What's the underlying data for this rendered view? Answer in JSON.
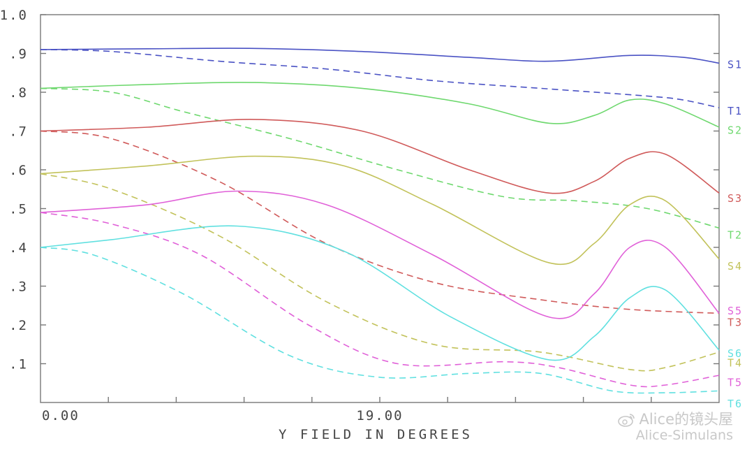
{
  "chart_data": {
    "type": "line",
    "title": "",
    "xlabel": "Y FIELD IN DEGREES",
    "ylabel": "",
    "xlim": [
      0,
      38
    ],
    "ylim": [
      0,
      1.0
    ],
    "x_tick_labels": [
      {
        "value": 0,
        "label": "0.00"
      },
      {
        "value": 19,
        "label": "19.00"
      }
    ],
    "y_tick_labels": [
      {
        "value": 0.1,
        "label": ".1"
      },
      {
        "value": 0.2,
        "label": ".2"
      },
      {
        "value": 0.3,
        "label": ".3"
      },
      {
        "value": 0.4,
        "label": ".4"
      },
      {
        "value": 0.5,
        "label": ".5"
      },
      {
        "value": 0.6,
        "label": ".6"
      },
      {
        "value": 0.7,
        "label": ".7"
      },
      {
        "value": 0.8,
        "label": ".8"
      },
      {
        "value": 0.9,
        "label": ".9"
      },
      {
        "value": 1.0,
        "label": "1.0"
      }
    ],
    "grid": false,
    "legend": "right-edge labels",
    "series": [
      {
        "name": "S1",
        "color": "#4a52c4",
        "style": "solid",
        "points": [
          [
            0,
            0.91
          ],
          [
            6,
            0.912
          ],
          [
            12,
            0.913
          ],
          [
            18,
            0.905
          ],
          [
            24,
            0.89
          ],
          [
            28.5,
            0.88
          ],
          [
            33,
            0.895
          ],
          [
            36,
            0.89
          ],
          [
            38,
            0.875
          ]
        ]
      },
      {
        "name": "T1",
        "color": "#4a52c4",
        "style": "dashed",
        "points": [
          [
            0,
            0.91
          ],
          [
            4,
            0.905
          ],
          [
            10,
            0.88
          ],
          [
            16,
            0.86
          ],
          [
            22,
            0.83
          ],
          [
            28,
            0.81
          ],
          [
            34,
            0.79
          ],
          [
            36,
            0.78
          ],
          [
            38,
            0.76
          ]
        ]
      },
      {
        "name": "S2",
        "color": "#6ed86e",
        "style": "solid",
        "points": [
          [
            0,
            0.81
          ],
          [
            6,
            0.82
          ],
          [
            12,
            0.825
          ],
          [
            18,
            0.81
          ],
          [
            24,
            0.77
          ],
          [
            28.5,
            0.72
          ],
          [
            31,
            0.74
          ],
          [
            33,
            0.78
          ],
          [
            35,
            0.77
          ],
          [
            38,
            0.71
          ]
        ]
      },
      {
        "name": "T2",
        "color": "#6ed86e",
        "style": "dashed",
        "points": [
          [
            0,
            0.81
          ],
          [
            4,
            0.8
          ],
          [
            8,
            0.75
          ],
          [
            14,
            0.68
          ],
          [
            20,
            0.6
          ],
          [
            26,
            0.53
          ],
          [
            30,
            0.52
          ],
          [
            34,
            0.5
          ],
          [
            38,
            0.45
          ]
        ]
      },
      {
        "name": "S3",
        "color": "#d05a5a",
        "style": "solid",
        "points": [
          [
            0,
            0.7
          ],
          [
            6,
            0.71
          ],
          [
            12,
            0.73
          ],
          [
            18,
            0.7
          ],
          [
            24,
            0.6
          ],
          [
            28.5,
            0.54
          ],
          [
            31,
            0.57
          ],
          [
            33,
            0.63
          ],
          [
            35,
            0.64
          ],
          [
            38,
            0.54
          ]
        ]
      },
      {
        "name": "T3",
        "color": "#d05a5a",
        "style": "dashed",
        "points": [
          [
            0,
            0.7
          ],
          [
            4,
            0.68
          ],
          [
            10,
            0.57
          ],
          [
            16,
            0.41
          ],
          [
            22,
            0.31
          ],
          [
            28,
            0.265
          ],
          [
            33,
            0.24
          ],
          [
            38,
            0.23
          ]
        ]
      },
      {
        "name": "S4",
        "color": "#c2c25a",
        "style": "solid",
        "points": [
          [
            0,
            0.59
          ],
          [
            6,
            0.61
          ],
          [
            12,
            0.635
          ],
          [
            17,
            0.61
          ],
          [
            22,
            0.51
          ],
          [
            28.5,
            0.36
          ],
          [
            31,
            0.41
          ],
          [
            33,
            0.51
          ],
          [
            35,
            0.52
          ],
          [
            38,
            0.37
          ]
        ]
      },
      {
        "name": "T4",
        "color": "#c2c25a",
        "style": "dashed",
        "points": [
          [
            0,
            0.59
          ],
          [
            4,
            0.55
          ],
          [
            10,
            0.43
          ],
          [
            16,
            0.26
          ],
          [
            22,
            0.15
          ],
          [
            28,
            0.13
          ],
          [
            33,
            0.085
          ],
          [
            35,
            0.09
          ],
          [
            38,
            0.13
          ]
        ]
      },
      {
        "name": "S5",
        "color": "#e060d8",
        "style": "solid",
        "points": [
          [
            0,
            0.49
          ],
          [
            6,
            0.51
          ],
          [
            11,
            0.545
          ],
          [
            16,
            0.51
          ],
          [
            22,
            0.38
          ],
          [
            28.5,
            0.22
          ],
          [
            31,
            0.28
          ],
          [
            33,
            0.4
          ],
          [
            35,
            0.4
          ],
          [
            38,
            0.23
          ]
        ]
      },
      {
        "name": "T5",
        "color": "#e060d8",
        "style": "dashed",
        "points": [
          [
            0,
            0.49
          ],
          [
            4,
            0.46
          ],
          [
            9,
            0.38
          ],
          [
            15,
            0.2
          ],
          [
            20,
            0.1
          ],
          [
            26,
            0.105
          ],
          [
            29,
            0.09
          ],
          [
            33,
            0.045
          ],
          [
            35,
            0.045
          ],
          [
            38,
            0.07
          ]
        ]
      },
      {
        "name": "S6",
        "color": "#60e0e0",
        "style": "solid",
        "points": [
          [
            0,
            0.4
          ],
          [
            4,
            0.42
          ],
          [
            11,
            0.455
          ],
          [
            17,
            0.39
          ],
          [
            23,
            0.22
          ],
          [
            28.5,
            0.11
          ],
          [
            31,
            0.17
          ],
          [
            33,
            0.27
          ],
          [
            35,
            0.29
          ],
          [
            38,
            0.135
          ]
        ]
      },
      {
        "name": "T6",
        "color": "#60e0e0",
        "style": "dashed",
        "points": [
          [
            0,
            0.4
          ],
          [
            3,
            0.38
          ],
          [
            8,
            0.28
          ],
          [
            14,
            0.12
          ],
          [
            19,
            0.065
          ],
          [
            24,
            0.075
          ],
          [
            28,
            0.075
          ],
          [
            32,
            0.03
          ],
          [
            35,
            0.025
          ],
          [
            38,
            0.03
          ]
        ]
      }
    ],
    "series_labels": [
      {
        "name": "S1",
        "label": "S1",
        "y": 0.875,
        "color": "#4a52c4"
      },
      {
        "name": "T1",
        "label": "T1",
        "y": 0.755,
        "color": "#4a52c4"
      },
      {
        "name": "S2",
        "label": "S2",
        "y": 0.705,
        "color": "#6ed86e"
      },
      {
        "name": "S3",
        "label": "S3",
        "y": 0.53,
        "color": "#d05a5a"
      },
      {
        "name": "T2",
        "label": "T2",
        "y": 0.435,
        "color": "#6ed86e"
      },
      {
        "name": "S4",
        "label": "S4",
        "y": 0.355,
        "color": "#c2c25a"
      },
      {
        "name": "S5",
        "label": "S5",
        "y": 0.24,
        "color": "#e060d8"
      },
      {
        "name": "T3",
        "label": "T3",
        "y": 0.21,
        "color": "#d05a5a"
      },
      {
        "name": "S6",
        "label": "S6",
        "y": 0.13,
        "color": "#60e0e0"
      },
      {
        "name": "T4",
        "label": "T4",
        "y": 0.105,
        "color": "#c2c25a"
      },
      {
        "name": "T5",
        "label": "T5",
        "y": 0.055,
        "color": "#e060d8"
      },
      {
        "name": "T6",
        "label": "T6",
        "y": 0.0,
        "color": "#60e0e0"
      }
    ]
  },
  "watermark": {
    "line1": "Alice的镜头屋",
    "line2": "Alice-Simulans",
    "icon": "weibo-icon"
  }
}
